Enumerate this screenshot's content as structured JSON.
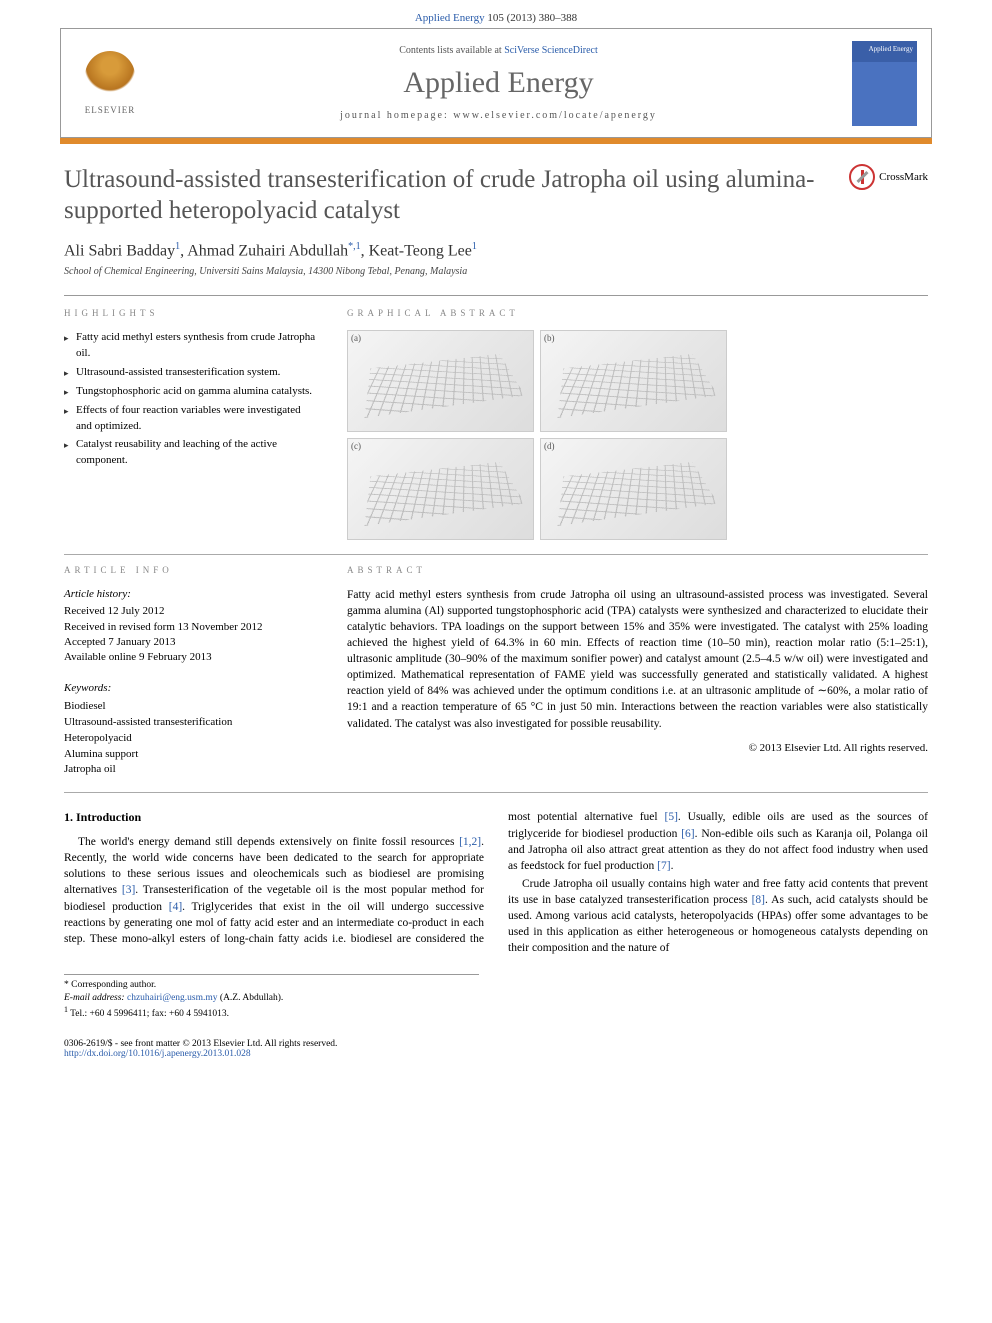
{
  "header": {
    "citation_prefix": "Applied Energy",
    "citation_rest": " 105 (2013) 380–388",
    "contents_prefix": "Contents lists available at ",
    "contents_link": "SciVerse ScienceDirect",
    "journal_name": "Applied Energy",
    "homepage_prefix": "journal homepage: ",
    "homepage_url": "www.elsevier.com/locate/apenergy",
    "elsevier_label": "ELSEVIER",
    "cover_label": "Applied Energy"
  },
  "article": {
    "title": "Ultrasound-assisted transesterification of crude Jatropha oil using alumina-supported heteropolyacid catalyst",
    "crossmark_label": "CrossMark",
    "authors_html": "Ali Sabri Badday",
    "author1": "Ali Sabri Badday",
    "author1_sup": "1",
    "author2": "Ahmad Zuhairi Abdullah",
    "author2_sup": "*,1",
    "author3": "Keat-Teong Lee",
    "author3_sup": "1",
    "affiliation": "School of Chemical Engineering, Universiti Sains Malaysia, 14300 Nibong Tebal, Penang, Malaysia"
  },
  "highlights_heading": "HIGHLIGHTS",
  "highlights": [
    "Fatty acid methyl esters synthesis from crude Jatropha oil.",
    "Ultrasound-assisted transesterification system.",
    "Tungstophosphoric acid on gamma alumina catalysts.",
    "Effects of four reaction variables were investigated and optimized.",
    "Catalyst reusability and leaching of the active component."
  ],
  "graphical_heading": "GRAPHICAL ABSTRACT",
  "ga_panels": {
    "a": "(a)",
    "b": "(b)",
    "c": "(c)",
    "d": "(d)"
  },
  "info_heading": "ARTICLE INFO",
  "history_heading": "Article history:",
  "history": {
    "received": "Received 12 July 2012",
    "revised": "Received in revised form 13 November 2012",
    "accepted": "Accepted 7 January 2013",
    "online": "Available online 9 February 2013"
  },
  "keywords_heading": "Keywords:",
  "keywords": [
    "Biodiesel",
    "Ultrasound-assisted transesterification",
    "Heteropolyacid",
    "Alumina support",
    "Jatropha oil"
  ],
  "abstract_heading": "ABSTRACT",
  "abstract_text": "Fatty acid methyl esters synthesis from crude Jatropha oil using an ultrasound-assisted process was investigated. Several gamma alumina (Al) supported tungstophosphoric acid (TPA) catalysts were synthesized and characterized to elucidate their catalytic behaviors. TPA loadings on the support between 15% and 35% were investigated. The catalyst with 25% loading achieved the highest yield of 64.3% in 60 min. Effects of reaction time (10–50 min), reaction molar ratio (5:1–25:1), ultrasonic amplitude (30–90% of the maximum sonifier power) and catalyst amount (2.5–4.5 w/w oil) were investigated and optimized. Mathematical representation of FAME yield was successfully generated and statistically validated. A highest reaction yield of 84% was achieved under the optimum conditions i.e. at an ultrasonic amplitude of ∼60%, a molar ratio of 19:1 and a reaction temperature of 65 °C in just 50 min. Interactions between the reaction variables were also statistically validated. The catalyst was also investigated for possible reusability.",
  "copyright": "© 2013 Elsevier Ltd. All rights reserved.",
  "intro_heading": "1. Introduction",
  "intro_p1a": "The world's energy demand still depends extensively on finite fossil resources ",
  "intro_ref1": "[1,2]",
  "intro_p1b": ". Recently, the world wide concerns have been dedicated to the search for appropriate solutions to these serious issues and oleochemicals such as biodiesel are promising alternatives ",
  "intro_ref2": "[3]",
  "intro_p1c": ". Transesterification of the vegetable oil is the most popular method for biodiesel production ",
  "intro_ref3": "[4]",
  "intro_p1d": ". Triglycerides that exist in the oil will undergo successive reactions by generating one mol of fatty",
  "intro_p2a": "acid ester and an intermediate co-product in each step. These mono-alkyl esters of long-chain fatty acids i.e. biodiesel are considered the most potential alternative fuel ",
  "intro_ref4": "[5]",
  "intro_p2b": ". Usually, edible oils are used as the sources of triglyceride for biodiesel production ",
  "intro_ref5": "[6]",
  "intro_p2c": ". Non-edible oils such as Karanja oil, Polanga oil and Jatropha oil also attract great attention as they do not affect food industry when used as feedstock for fuel production ",
  "intro_ref6": "[7]",
  "intro_p2d": ".",
  "intro_p3a": "Crude Jatropha oil usually contains high water and free fatty acid contents that prevent its use in base catalyzed transesterification process ",
  "intro_ref7": "[8]",
  "intro_p3b": ". As such, acid catalysts should be used. Among various acid catalysts, heteropolyacids (HPAs) offer some advantages to be used in this application as either heterogeneous or homogeneous catalysts depending on their composition and the nature of",
  "footnotes": {
    "corresponding_label": "* Corresponding author.",
    "email_label": "E-mail address: ",
    "email": "chzuhairi@eng.usm.my",
    "email_suffix": " (A.Z. Abdullah).",
    "tel_label": "1",
    "tel": " Tel.: +60 4 5996411; fax: +60 4 5941013."
  },
  "footer": {
    "issn": "0306-2619/$ - see front matter © 2013 Elsevier Ltd. All rights reserved.",
    "doi_label": "http://dx.doi.org/",
    "doi": "10.1016/j.apenergy.2013.01.028"
  }
}
